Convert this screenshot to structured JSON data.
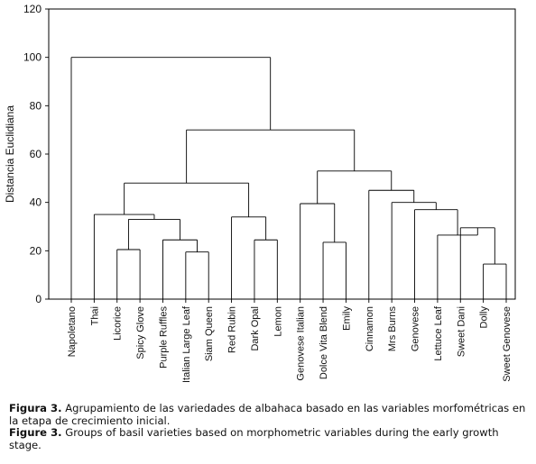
{
  "chart_data": {
    "type": "dendrogram",
    "ylabel": "Distancia Euclidiana",
    "ylim": [
      0,
      120
    ],
    "yticks": [
      0,
      20,
      40,
      60,
      80,
      100,
      120
    ],
    "leaves": [
      "Napoletano",
      "Thai",
      "Licorice",
      "Spicy Glove",
      "Purple Ruffles",
      "Italian Large Leaf",
      "Siam Queen",
      "Red Rubin",
      "Dark Opal",
      "Lemon",
      "Genovese Italian",
      "Dolce Vita Blend",
      "Emily",
      "Cinnamon",
      "Mrs Burns",
      "Genovese",
      "Lettuce Leaf",
      "Sweet Dani",
      "Dolly",
      "Sweet Genovese"
    ],
    "merges": [
      {
        "id": "c1",
        "children": [
          "L:Licorice",
          "L:Spicy Glove"
        ],
        "height": 20.5
      },
      {
        "id": "c2",
        "children": [
          "L:Italian Large Leaf",
          "L:Siam Queen"
        ],
        "height": 19.5
      },
      {
        "id": "c3",
        "children": [
          "L:Purple Ruffles",
          "c2"
        ],
        "height": 24.5
      },
      {
        "id": "c4",
        "children": [
          "c1",
          "c3"
        ],
        "height": 33
      },
      {
        "id": "c5",
        "children": [
          "L:Thai",
          "c4"
        ],
        "height": 35
      },
      {
        "id": "c6",
        "children": [
          "L:Dark Opal",
          "L:Lemon"
        ],
        "height": 24.5
      },
      {
        "id": "c7",
        "children": [
          "L:Red Rubin",
          "c6"
        ],
        "height": 34
      },
      {
        "id": "c8",
        "children": [
          "c5",
          "c7"
        ],
        "height": 48
      },
      {
        "id": "c9",
        "children": [
          "L:Dolce Vita Blend",
          "L:Emily"
        ],
        "height": 23.5
      },
      {
        "id": "c10",
        "children": [
          "L:Genovese Italian",
          "c9"
        ],
        "height": 39.5
      },
      {
        "id": "c11",
        "children": [
          "L:Dolly",
          "L:Sweet Genovese"
        ],
        "height": 14.5
      },
      {
        "id": "c12",
        "children": [
          "L:Sweet Dani",
          "c11"
        ],
        "height": 29.5
      },
      {
        "id": "c13",
        "children": [
          "L:Lettuce Leaf",
          "c12"
        ],
        "height": 26.5
      },
      {
        "id": "c14",
        "children": [
          "L:Genovese",
          "c13"
        ],
        "height": 37
      },
      {
        "id": "c15",
        "children": [
          "L:Mrs Burns",
          "c14"
        ],
        "height": 40
      },
      {
        "id": "c16",
        "children": [
          "L:Cinnamon",
          "c15"
        ],
        "height": 45
      },
      {
        "id": "c17",
        "children": [
          "c10",
          "c16"
        ],
        "height": 53
      },
      {
        "id": "c18",
        "children": [
          "c8",
          "c17"
        ],
        "height": 70
      },
      {
        "id": "c19",
        "children": [
          "L:Napoletano",
          "c18"
        ],
        "height": 100
      }
    ]
  },
  "caption": {
    "es_label": "Figura 3.",
    "es_text": "Agrupamiento de las variedades de albahaca basado en las variables morfométricas en la etapa de crecimiento inicial.",
    "en_label": "Figure 3.",
    "en_text": "Groups of basil varieties based on morphometric variables during the early growth stage."
  }
}
